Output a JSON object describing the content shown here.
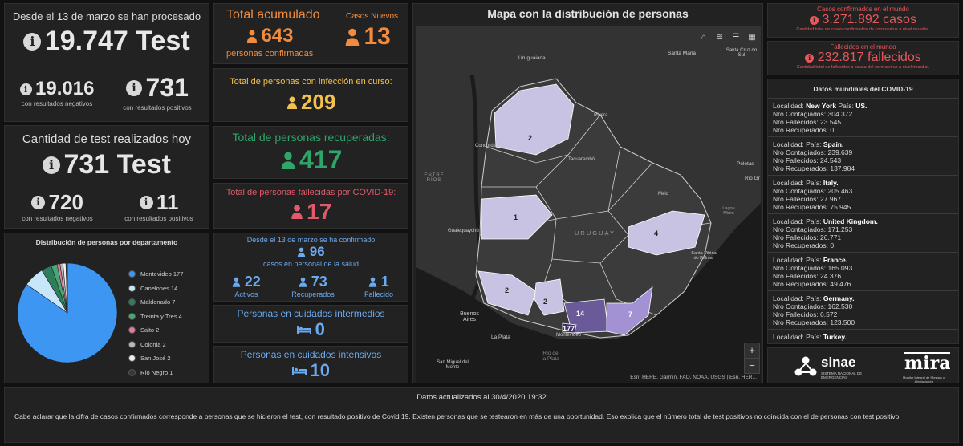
{
  "test_panel": {
    "title": "Desde el 13 de marzo se han procesado",
    "total": "19.747 Test",
    "negatives_value": "19.016",
    "negatives_label": "con resultados negativos",
    "positives_value": "731",
    "positives_label": "con resultados positivos"
  },
  "today_panel": {
    "title": "Cantidad de test realizados hoy",
    "total": "731 Test",
    "negatives_value": "720",
    "negatives_label": "con resultados negativos",
    "positives_value": "11",
    "positives_label": "con resultados positivos"
  },
  "pie": {
    "title": "Distribución de personas por departamento",
    "slices": [
      {
        "label": "Montevideo 177",
        "value": 177,
        "color": "#3e96f3"
      },
      {
        "label": "Canelones 14",
        "value": 14,
        "color": "#c8e6fa"
      },
      {
        "label": "Maldonado 7",
        "value": 7,
        "color": "#2e7d5b"
      },
      {
        "label": "Treinta y Tres 4",
        "value": 4,
        "color": "#49a676"
      },
      {
        "label": "Salto 2",
        "value": 2,
        "color": "#e17b9e"
      },
      {
        "label": "Colonia 2",
        "value": 2,
        "color": "#b9b9b9"
      },
      {
        "label": "San José 2",
        "value": 2,
        "color": "#ededed"
      },
      {
        "label": "Río Negro 1",
        "value": 1,
        "color": "#383838"
      }
    ]
  },
  "accumulated": {
    "title": "Total acumulado",
    "value": "643",
    "label": "personas confirmadas",
    "new_title": "Casos Nuevos",
    "new_value": "13"
  },
  "in_course": {
    "title": "Total de personas con infección en curso:",
    "value": "209"
  },
  "recovered": {
    "title": "Total de personas recuperadas:",
    "value": "417"
  },
  "deceased": {
    "title": "Total de personas fallecidas por COVID-19:",
    "value": "17"
  },
  "health_staff": {
    "title": "Desde el 13 de marzo se ha confirmado",
    "value": "96",
    "subtitle": "casos en personal de la salud",
    "active_value": "22",
    "active_label": "Activos",
    "recovered_value": "73",
    "recovered_label": "Recuperados",
    "deceased_value": "1",
    "deceased_label": "Fallecido"
  },
  "intermediate": {
    "title": "Personas en cuidados intermedios",
    "value": "0"
  },
  "intensive": {
    "title": "Personas en cuidados intensivos",
    "value": "10"
  },
  "map": {
    "title": "Mapa con la distribución de personas",
    "attribution": "Esri, HERE, Garmin, FAO, NOAA, USGS | Esri, HER...",
    "zoom_in": "+",
    "zoom_out": "−",
    "country_label": "URUGUAY",
    "places": {
      "uruguaiana": "Uruguaiana",
      "santa_maria": "Santa Maria",
      "santa_cruz": "Santa Cruz do Sul",
      "concordia": "Concordia",
      "rivera": "Rivera",
      "tacuarembo": "Tacuarembó",
      "pelotas": "Pelotas",
      "rio_gr": "Rio Gr",
      "melo": "Melo",
      "entre_rios": "ENTRE RÍOS",
      "gualeguaychu": "Gualeguaychú",
      "lagoa": "Lagoa Mirim",
      "santa_vit": "Santa Vitória do Palmar",
      "buenos_aires": "Buenos Aires",
      "la_plata": "La Plata",
      "montevideo": "Montevideo",
      "rio_plata": "Río de la Plata",
      "san_miguel": "San Miguel del Monte"
    },
    "counts": {
      "north": "2",
      "west": "1",
      "east": "4",
      "sw": "2",
      "sj": "2",
      "can": "14",
      "mal": "7",
      "mvd": "177"
    }
  },
  "world_confirmed": {
    "title": "Casos confirmados en el mundo",
    "value": "3.271.892 casos",
    "subtitle": "Cantidad total de casos confirmados de coronavirus a nivel mundial."
  },
  "world_deaths": {
    "title": "Fallecidos en el mundo",
    "value": "232.817 fallecidos",
    "subtitle": "Cantidad total de fallecidos a causa del coronavirus a nivel mundial."
  },
  "world_list": {
    "title": "Datos mundiales del COVID-19",
    "labels": {
      "loc": "Localidad:",
      "country": "País:",
      "cont": "Nro Contagiados:",
      "dead": "Nro Fallecidos:",
      "rec": "Nro Recuperados:"
    },
    "entries": [
      {
        "locality": "New York",
        "country": "US.",
        "cont": "304.372",
        "dead": "23.545",
        "rec": "0"
      },
      {
        "locality": "",
        "country": "Spain.",
        "cont": "239.639",
        "dead": "24.543",
        "rec": "137.984"
      },
      {
        "locality": "",
        "country": "Italy.",
        "cont": "205.463",
        "dead": "27.967",
        "rec": "75.945"
      },
      {
        "locality": "",
        "country": "United Kingdom.",
        "cont": "171.253",
        "dead": "26.771",
        "rec": "0"
      },
      {
        "locality": "",
        "country": "France.",
        "cont": "165.093",
        "dead": "24.376",
        "rec": "49.476"
      },
      {
        "locality": "",
        "country": "Germany.",
        "cont": "162.530",
        "dead": "6.572",
        "rec": "123.500"
      },
      {
        "locality": "",
        "country": "Turkey.",
        "cont": "",
        "dead": "",
        "rec": ""
      }
    ]
  },
  "logos": {
    "sinae": "sinae",
    "sinae_sub": "SISTEMA NACIONAL DE EMERGENCIAS",
    "mira": "mira",
    "mira_sub": "Monitor Integral de Riesgos y Afectaciones"
  },
  "footer": {
    "updated": "Datos actualizados al 30/4/2020 19:32",
    "note": "Cabe aclarar que la cifra de casos confirmados corresponde a personas que se hicieron el test, con resultado positivo de Covid 19. Existen personas que se testearon en más de una oportunidad. Eso explica que el número total de test positivos no coincida con el de personas con test positivo."
  },
  "colors": {
    "accent_orange": "#f28c3c",
    "accent_yellow": "#f2c14e",
    "accent_green": "#2fa56a",
    "accent_red": "#e05a6b",
    "accent_blue": "#6ba9f0"
  }
}
